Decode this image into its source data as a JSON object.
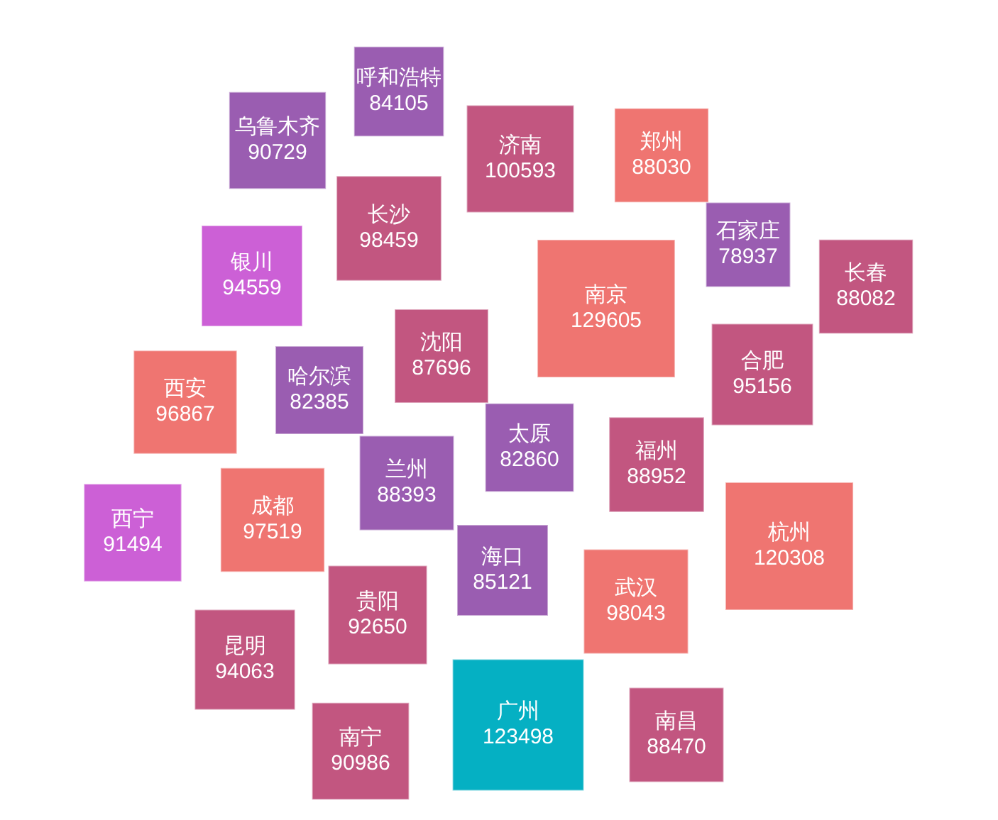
{
  "chart_data": {
    "type": "other",
    "categories": [
      "呼和浩特",
      "乌鲁木齐",
      "济南",
      "郑州",
      "长沙",
      "石家庄",
      "长春",
      "银川",
      "南京",
      "沈阳",
      "合肥",
      "西安",
      "哈尔滨",
      "太原",
      "福州",
      "兰州",
      "西宁",
      "成都",
      "杭州",
      "海口",
      "武汉",
      "贵阳",
      "昆明",
      "广州",
      "南昌",
      "南宁"
    ],
    "values": [
      84105,
      90729,
      100593,
      88030,
      98459,
      78937,
      88082,
      94559,
      129605,
      87696,
      95156,
      96867,
      82385,
      82860,
      88952,
      88393,
      91494,
      97519,
      120308,
      85121,
      98043,
      92650,
      94063,
      123498,
      88470,
      90986
    ],
    "colors": [
      "#9a5db1",
      "#9a5db1",
      "#c25680",
      "#ef7571",
      "#c25680",
      "#9a5db1",
      "#c25680",
      "#cc60d6",
      "#ef7571",
      "#c25680",
      "#c25680",
      "#ef7571",
      "#9a5db1",
      "#9a5db1",
      "#c25680",
      "#9a5db1",
      "#cc60d6",
      "#ef7571",
      "#ef7571",
      "#9a5db1",
      "#ef7571",
      "#c25680",
      "#c25680",
      "#05b0c3",
      "#c25680",
      "#c25680"
    ],
    "data_labels": true
  }
}
